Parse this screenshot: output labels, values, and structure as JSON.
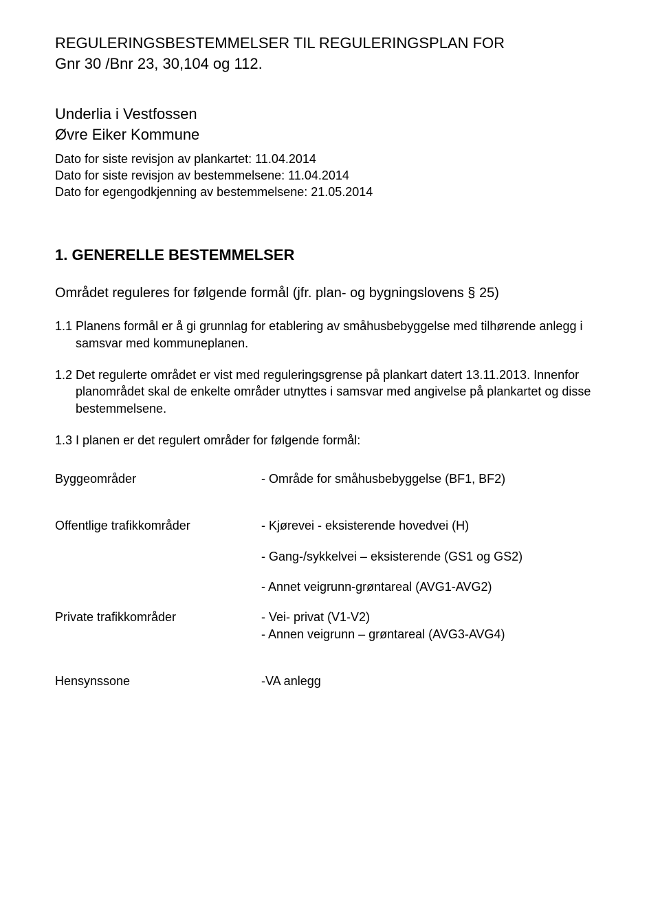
{
  "title": {
    "line1": "REGULERINGSBESTEMMELSER TIL REGULERINGSPLAN FOR",
    "line2": "Gnr 30 /Bnr 23, 30,104 og 112."
  },
  "subtitle": {
    "line1": "Underlia i Vestfossen",
    "line2": "Øvre Eiker Kommune"
  },
  "dates": {
    "d1": "Dato for siste revisjon av plankartet: 11.04.2014",
    "d2": "Dato for siste revisjon av bestemmelsene: 11.04.2014",
    "d3": "Dato for egengodkjenning av bestemmelsene: 21.05.2014"
  },
  "section1": {
    "heading": "1. GENERELLE BESTEMMELSER",
    "subheading": "Området reguleres for følgende formål (jfr. plan- og bygningslovens § 25)",
    "p1": "1.1 Planens formål er å gi grunnlag for etablering av småhusbebyggelse med tilhørende anlegg i samsvar med kommuneplanen.",
    "p2": "1.2 Det regulerte området er vist med reguleringsgrense på plankart datert 13.11.2013. Innenfor planområdet skal de enkelte områder utnyttes i samsvar med angivelse på plankartet og disse bestemmelsene.",
    "p3": "1.3 I planen er det regulert områder for følgende formål:"
  },
  "defs": {
    "bygge": {
      "term": "Byggeområder",
      "v1": "- Område for småhusbebyggelse (BF1, BF2)"
    },
    "offentlige": {
      "term": "Offentlige trafikkområder",
      "v1": "- Kjørevei - eksisterende hovedvei (H)",
      "v2": "- Gang-/sykkelvei – eksisterende (GS1 og GS2)",
      "v3": "- Annet veigrunn-grøntareal (AVG1-AVG2)"
    },
    "private": {
      "term": "Private trafikkområder",
      "v1": "- Vei- privat (V1-V2)",
      "v2": "- Annen veigrunn – grøntareal (AVG3-AVG4)"
    },
    "hensyn": {
      "term": "Hensynssone",
      "v1": "-VA anlegg"
    }
  }
}
